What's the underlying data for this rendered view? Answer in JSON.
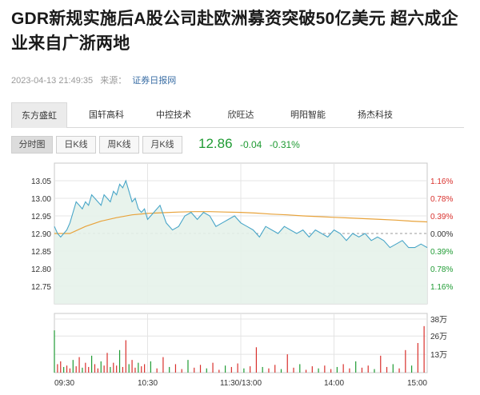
{
  "article": {
    "title": "GDR新规实施后A股公司赴欧洲募资突破50亿美元 超六成企业来自广浙两地",
    "datetime": "2023-04-13 21:49:35",
    "source_label": "来源：",
    "source_name": "证券日报网"
  },
  "stock_tabs": [
    {
      "label": "东方盛虹",
      "active": true
    },
    {
      "label": "国轩高科",
      "active": false
    },
    {
      "label": "中控技术",
      "active": false
    },
    {
      "label": "欣旺达",
      "active": false
    },
    {
      "label": "明阳智能",
      "active": false
    },
    {
      "label": "扬杰科技",
      "active": false
    }
  ],
  "chart_tabs": [
    {
      "label": "分时图",
      "active": true
    },
    {
      "label": "日K线",
      "active": false
    },
    {
      "label": "周K线",
      "active": false
    },
    {
      "label": "月K线",
      "active": false
    }
  ],
  "quote": {
    "price": "12.86",
    "change": "-0.04",
    "change_pct": "-0.31%"
  },
  "colors": {
    "up": "#d9302c",
    "down": "#1f9b33",
    "price_line": "#49a6c8",
    "avg_line": "#e8a33b"
  },
  "chart_data": {
    "type": "line",
    "prev_close": 12.9,
    "ylim": [
      12.7,
      13.1
    ],
    "price_ticks": [
      "13.05",
      "13.00",
      "12.95",
      "12.90",
      "12.85",
      "12.80",
      "12.75"
    ],
    "price_tick_values": [
      13.05,
      13.0,
      12.95,
      12.9,
      12.85,
      12.8,
      12.75
    ],
    "pct_ticks": [
      {
        "label": "1.16%",
        "dir": "up"
      },
      {
        "label": "0.78%",
        "dir": "up"
      },
      {
        "label": "0.39%",
        "dir": "up"
      },
      {
        "label": "0.00%",
        "dir": "flat"
      },
      {
        "label": "0.39%",
        "dir": "down"
      },
      {
        "label": "0.78%",
        "dir": "down"
      },
      {
        "label": "1.16%",
        "dir": "down"
      }
    ],
    "time_ticks": [
      "09:30",
      "10:30",
      "11:30/13:00",
      "14:00",
      "15:00"
    ],
    "volume_ticks": [
      "38万",
      "26万",
      "13万"
    ],
    "volume_tick_values": [
      380000,
      260000,
      130000
    ],
    "volume_max": 420000,
    "minutes": 240,
    "series": [
      {
        "name": "price",
        "x": [
          0,
          2,
          4,
          6,
          8,
          10,
          12,
          14,
          16,
          18,
          20,
          22,
          24,
          26,
          28,
          30,
          32,
          34,
          36,
          38,
          40,
          42,
          44,
          46,
          48,
          50,
          52,
          54,
          56,
          58,
          60,
          64,
          68,
          72,
          76,
          80,
          84,
          88,
          92,
          96,
          100,
          104,
          108,
          112,
          116,
          120,
          124,
          128,
          132,
          136,
          140,
          144,
          148,
          152,
          156,
          160,
          164,
          168,
          172,
          176,
          180,
          184,
          188,
          192,
          196,
          200,
          204,
          208,
          212,
          216,
          220,
          224,
          228,
          232,
          236,
          240
        ],
        "y": [
          12.92,
          12.9,
          12.89,
          12.9,
          12.91,
          12.93,
          12.96,
          12.99,
          12.98,
          12.97,
          12.99,
          12.98,
          13.01,
          13.0,
          12.99,
          12.98,
          13.01,
          13.0,
          12.99,
          13.02,
          13.01,
          13.04,
          13.03,
          13.05,
          13.02,
          12.99,
          13.0,
          12.97,
          12.96,
          12.97,
          12.94,
          12.96,
          12.98,
          12.93,
          12.91,
          12.92,
          12.95,
          12.96,
          12.94,
          12.96,
          12.95,
          12.92,
          12.93,
          12.94,
          12.95,
          12.93,
          12.92,
          12.91,
          12.89,
          12.92,
          12.91,
          12.9,
          12.92,
          12.91,
          12.9,
          12.91,
          12.89,
          12.91,
          12.9,
          12.89,
          12.91,
          12.9,
          12.88,
          12.9,
          12.89,
          12.9,
          12.88,
          12.89,
          12.88,
          12.86,
          12.87,
          12.88,
          12.86,
          12.86,
          12.87,
          12.86
        ]
      },
      {
        "name": "average",
        "x": [
          0,
          10,
          20,
          30,
          40,
          50,
          60,
          70,
          80,
          90,
          100,
          110,
          120,
          130,
          140,
          150,
          160,
          170,
          180,
          190,
          200,
          210,
          220,
          230,
          240
        ],
        "y": [
          12.9,
          12.9,
          12.92,
          12.935,
          12.945,
          12.953,
          12.957,
          12.959,
          12.961,
          12.962,
          12.962,
          12.961,
          12.96,
          12.958,
          12.955,
          12.953,
          12.95,
          12.948,
          12.946,
          12.944,
          12.942,
          12.94,
          12.938,
          12.935,
          12.933
        ]
      }
    ],
    "volume": [
      {
        "x": 0,
        "v": 300000
      },
      {
        "x": 2,
        "v": 60000
      },
      {
        "x": 4,
        "v": 80000
      },
      {
        "x": 6,
        "v": 40000
      },
      {
        "x": 8,
        "v": 50000
      },
      {
        "x": 10,
        "v": 30000
      },
      {
        "x": 12,
        "v": 90000
      },
      {
        "x": 14,
        "v": 45000
      },
      {
        "x": 16,
        "v": 110000
      },
      {
        "x": 18,
        "v": 35000
      },
      {
        "x": 20,
        "v": 70000
      },
      {
        "x": 22,
        "v": 40000
      },
      {
        "x": 24,
        "v": 120000
      },
      {
        "x": 26,
        "v": 60000
      },
      {
        "x": 28,
        "v": 30000
      },
      {
        "x": 30,
        "v": 80000
      },
      {
        "x": 32,
        "v": 50000
      },
      {
        "x": 34,
        "v": 140000
      },
      {
        "x": 36,
        "v": 40000
      },
      {
        "x": 38,
        "v": 70000
      },
      {
        "x": 40,
        "v": 50000
      },
      {
        "x": 42,
        "v": 160000
      },
      {
        "x": 44,
        "v": 40000
      },
      {
        "x": 46,
        "v": 230000
      },
      {
        "x": 48,
        "v": 60000
      },
      {
        "x": 50,
        "v": 90000
      },
      {
        "x": 52,
        "v": 35000
      },
      {
        "x": 54,
        "v": 70000
      },
      {
        "x": 56,
        "v": 45000
      },
      {
        "x": 58,
        "v": 60000
      },
      {
        "x": 62,
        "v": 80000
      },
      {
        "x": 66,
        "v": 30000
      },
      {
        "x": 70,
        "v": 110000
      },
      {
        "x": 74,
        "v": 40000
      },
      {
        "x": 78,
        "v": 60000
      },
      {
        "x": 82,
        "v": 25000
      },
      {
        "x": 86,
        "v": 90000
      },
      {
        "x": 90,
        "v": 35000
      },
      {
        "x": 94,
        "v": 55000
      },
      {
        "x": 98,
        "v": 30000
      },
      {
        "x": 102,
        "v": 70000
      },
      {
        "x": 106,
        "v": 20000
      },
      {
        "x": 110,
        "v": 50000
      },
      {
        "x": 114,
        "v": 40000
      },
      {
        "x": 118,
        "v": 65000
      },
      {
        "x": 122,
        "v": 30000
      },
      {
        "x": 126,
        "v": 45000
      },
      {
        "x": 130,
        "v": 180000
      },
      {
        "x": 134,
        "v": 40000
      },
      {
        "x": 138,
        "v": 30000
      },
      {
        "x": 142,
        "v": 55000
      },
      {
        "x": 146,
        "v": 25000
      },
      {
        "x": 150,
        "v": 130000
      },
      {
        "x": 154,
        "v": 35000
      },
      {
        "x": 158,
        "v": 60000
      },
      {
        "x": 162,
        "v": 20000
      },
      {
        "x": 166,
        "v": 45000
      },
      {
        "x": 170,
        "v": 30000
      },
      {
        "x": 174,
        "v": 50000
      },
      {
        "x": 178,
        "v": 25000
      },
      {
        "x": 182,
        "v": 40000
      },
      {
        "x": 186,
        "v": 60000
      },
      {
        "x": 190,
        "v": 30000
      },
      {
        "x": 194,
        "v": 80000
      },
      {
        "x": 198,
        "v": 35000
      },
      {
        "x": 202,
        "v": 50000
      },
      {
        "x": 206,
        "v": 25000
      },
      {
        "x": 210,
        "v": 120000
      },
      {
        "x": 214,
        "v": 40000
      },
      {
        "x": 218,
        "v": 60000
      },
      {
        "x": 222,
        "v": 30000
      },
      {
        "x": 226,
        "v": 160000
      },
      {
        "x": 230,
        "v": 50000
      },
      {
        "x": 234,
        "v": 210000
      },
      {
        "x": 238,
        "v": 330000
      }
    ]
  }
}
